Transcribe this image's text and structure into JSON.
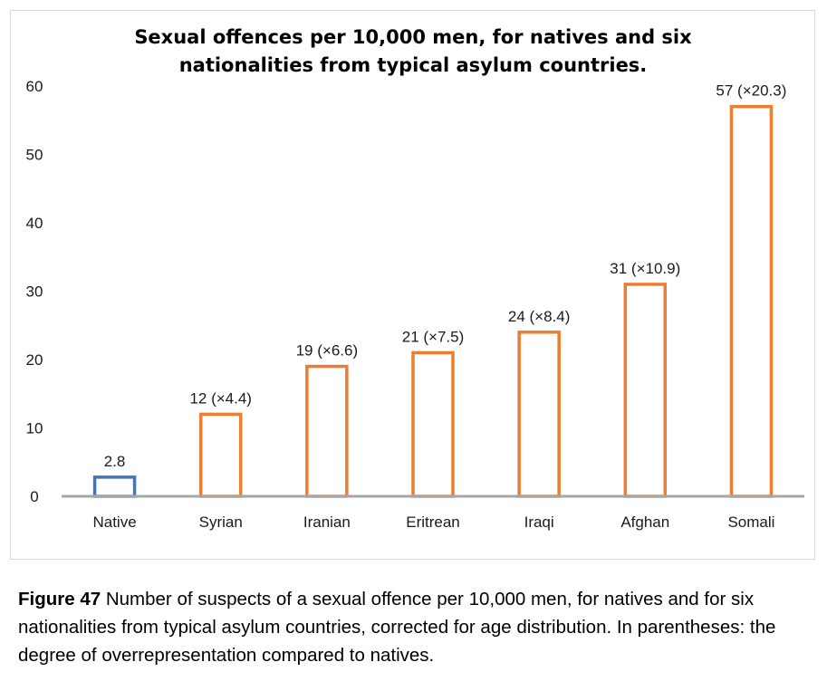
{
  "chart_data": {
    "type": "bar",
    "title_lines": [
      "Sexual offences per 10,000 men, for natives and six",
      "nationalities from typical asylum countries."
    ],
    "categories": [
      "Native",
      "Syrian",
      "Iranian",
      "Eritrean",
      "Iraqi",
      "Afghan",
      "Somali"
    ],
    "values": [
      2.8,
      12,
      19,
      21,
      24,
      31,
      57
    ],
    "data_labels": [
      "2.8",
      "12 (×4.4)",
      "19 (×6.6)",
      "21 (×7.5)",
      "24 (×8.4)",
      "31 (×10.9)",
      "57 (×20.3)"
    ],
    "bar_colors": [
      "#4472c4",
      "#ed7d31",
      "#ed7d31",
      "#ed7d31",
      "#ed7d31",
      "#ed7d31",
      "#ed7d31"
    ],
    "bar_style": "outline",
    "y_ticks": [
      0,
      10,
      20,
      30,
      40,
      50,
      60
    ],
    "ylim": [
      0,
      60
    ],
    "xlabel": "",
    "ylabel": "",
    "grid": false,
    "legend": "none",
    "axis_color": "#a6a6a6"
  },
  "caption": {
    "label": "Figure 47",
    "text": " Number of suspects of a sexual offence per 10,000 men, for natives and for six nationalities from typical asylum countries, corrected for age distribution. In parentheses: the degree of overrepresentation compared to natives."
  }
}
